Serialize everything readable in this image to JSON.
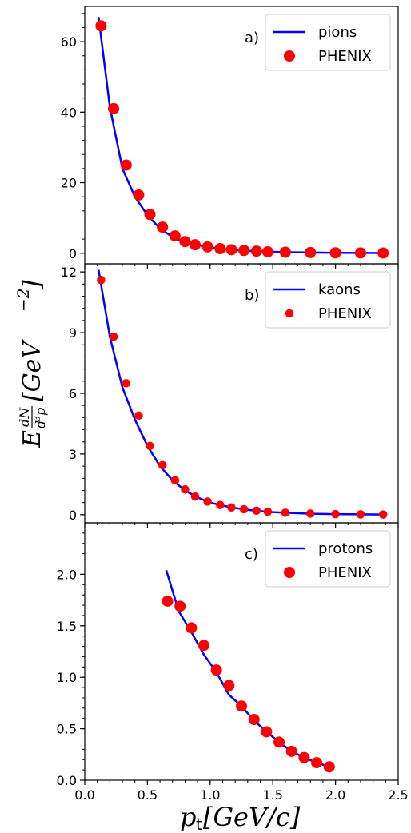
{
  "figure": {
    "ylabel": "E dN/d³p [GeV⁻²]",
    "ylabel_parts": {
      "E": "E",
      "dN": "dN",
      "d3p_d": "d",
      "d3p_3": "3",
      "d3p_p": "p",
      "unit_open": "[GeV",
      "unit_exp": "−2",
      "unit_close": "]"
    },
    "xlabel": "p_t [GeV/c]",
    "xlabel_parts": {
      "p": "p",
      "sub": "t",
      "unit": "[GeV/c]"
    }
  },
  "colors": {
    "model_line": "#0000ff",
    "data_points": "#ff0000",
    "axes": "#000000"
  },
  "chart_data": [
    {
      "panel": "a)",
      "type": "line",
      "xlim": [
        0,
        2.5
      ],
      "ylim": [
        -3,
        70
      ],
      "yticks": [
        0,
        20,
        40,
        60
      ],
      "ytick_labels": [
        "0",
        "20",
        "40",
        "60"
      ],
      "xticks": [
        0.0,
        0.5,
        1.0,
        1.5,
        2.0,
        2.5
      ],
      "show_xtick_labels": false,
      "legend": {
        "placement": "top-right",
        "line_label": "pions",
        "marker_label": "PHENIX"
      },
      "marker_scale": 1.0,
      "series": [
        {
          "name": "pions",
          "kind": "line",
          "x": [
            0.11,
            0.2,
            0.3,
            0.4,
            0.5,
            0.6,
            0.7,
            0.8,
            0.9,
            1.0,
            1.1,
            1.2,
            1.3,
            1.4,
            1.5,
            1.6,
            1.8,
            2.0,
            2.2,
            2.38
          ],
          "y": [
            67.0,
            41.5,
            24.0,
            16.0,
            10.8,
            7.0,
            4.6,
            3.2,
            2.3,
            1.7,
            1.2,
            0.9,
            0.7,
            0.5,
            0.4,
            0.3,
            0.2,
            0.12,
            0.08,
            0.05
          ]
        },
        {
          "name": "PHENIX",
          "kind": "scatter",
          "x": [
            0.13,
            0.23,
            0.33,
            0.43,
            0.52,
            0.62,
            0.72,
            0.8,
            0.88,
            0.98,
            1.08,
            1.17,
            1.27,
            1.37,
            1.46,
            1.6,
            1.8,
            2.0,
            2.2,
            2.38
          ],
          "y": [
            64.5,
            41.0,
            25.0,
            16.5,
            11.0,
            7.4,
            4.9,
            3.3,
            2.4,
            1.8,
            1.3,
            1.0,
            0.8,
            0.6,
            0.4,
            0.3,
            0.2,
            0.12,
            0.08,
            0.05
          ]
        }
      ]
    },
    {
      "panel": "b)",
      "type": "line",
      "xlim": [
        0,
        2.5
      ],
      "ylim": [
        -0.4,
        12.4
      ],
      "yticks": [
        0,
        3,
        6,
        9,
        12
      ],
      "ytick_labels": [
        "0",
        "3",
        "6",
        "9",
        "12"
      ],
      "xticks": [
        0.0,
        0.5,
        1.0,
        1.5,
        2.0,
        2.5
      ],
      "show_xtick_labels": false,
      "legend": {
        "placement": "top-right",
        "line_label": "kaons",
        "marker_label": "PHENIX"
      },
      "marker_scale": 0.75,
      "series": [
        {
          "name": "kaons",
          "kind": "line",
          "x": [
            0.11,
            0.2,
            0.3,
            0.4,
            0.5,
            0.6,
            0.7,
            0.8,
            0.9,
            1.0,
            1.1,
            1.2,
            1.3,
            1.4,
            1.5,
            1.6,
            1.8,
            2.0,
            2.2,
            2.38
          ],
          "y": [
            12.1,
            8.8,
            6.3,
            4.7,
            3.4,
            2.4,
            1.7,
            1.2,
            0.85,
            0.6,
            0.45,
            0.33,
            0.24,
            0.18,
            0.13,
            0.1,
            0.05,
            0.03,
            0.02,
            0.01
          ]
        },
        {
          "name": "PHENIX",
          "kind": "scatter",
          "x": [
            0.13,
            0.23,
            0.33,
            0.43,
            0.52,
            0.62,
            0.72,
            0.8,
            0.88,
            0.98,
            1.08,
            1.17,
            1.27,
            1.37,
            1.46,
            1.6,
            1.8,
            2.0,
            2.2,
            2.38
          ],
          "y": [
            11.6,
            8.8,
            6.5,
            4.9,
            3.4,
            2.45,
            1.7,
            1.25,
            0.9,
            0.65,
            0.48,
            0.36,
            0.27,
            0.2,
            0.15,
            0.1,
            0.06,
            0.03,
            0.02,
            0.01
          ]
        }
      ]
    },
    {
      "panel": "c)",
      "type": "line",
      "xlim": [
        0,
        2.5
      ],
      "ylim": [
        0,
        2.5
      ],
      "yticks": [
        0.0,
        0.5,
        1.0,
        1.5,
        2.0
      ],
      "ytick_labels": [
        "0.0",
        "0.5",
        "1.0",
        "1.5",
        "2.0"
      ],
      "xticks": [
        0.0,
        0.5,
        1.0,
        1.5,
        2.0,
        2.5
      ],
      "xtick_labels": [
        "0.0",
        "0.5",
        "1.0",
        "1.5",
        "2.0",
        "2.5"
      ],
      "show_xtick_labels": true,
      "legend": {
        "placement": "top-right",
        "line_label": "protons",
        "marker_label": "PHENIX"
      },
      "marker_scale": 1.0,
      "series": [
        {
          "name": "protons",
          "kind": "line",
          "x": [
            0.65,
            0.75,
            0.85,
            0.95,
            1.05,
            1.15,
            1.25,
            1.35,
            1.45,
            1.55,
            1.65,
            1.75,
            1.85,
            1.95
          ],
          "y": [
            2.04,
            1.64,
            1.44,
            1.22,
            1.05,
            0.83,
            0.72,
            0.58,
            0.47,
            0.37,
            0.28,
            0.22,
            0.17,
            0.13
          ]
        },
        {
          "name": "PHENIX",
          "kind": "scatter",
          "x": [
            0.66,
            0.76,
            0.85,
            0.95,
            1.05,
            1.15,
            1.25,
            1.35,
            1.45,
            1.55,
            1.65,
            1.75,
            1.85,
            1.95
          ],
          "y": [
            1.74,
            1.69,
            1.48,
            1.31,
            1.07,
            0.92,
            0.72,
            0.59,
            0.47,
            0.37,
            0.28,
            0.22,
            0.17,
            0.13
          ]
        }
      ]
    }
  ]
}
